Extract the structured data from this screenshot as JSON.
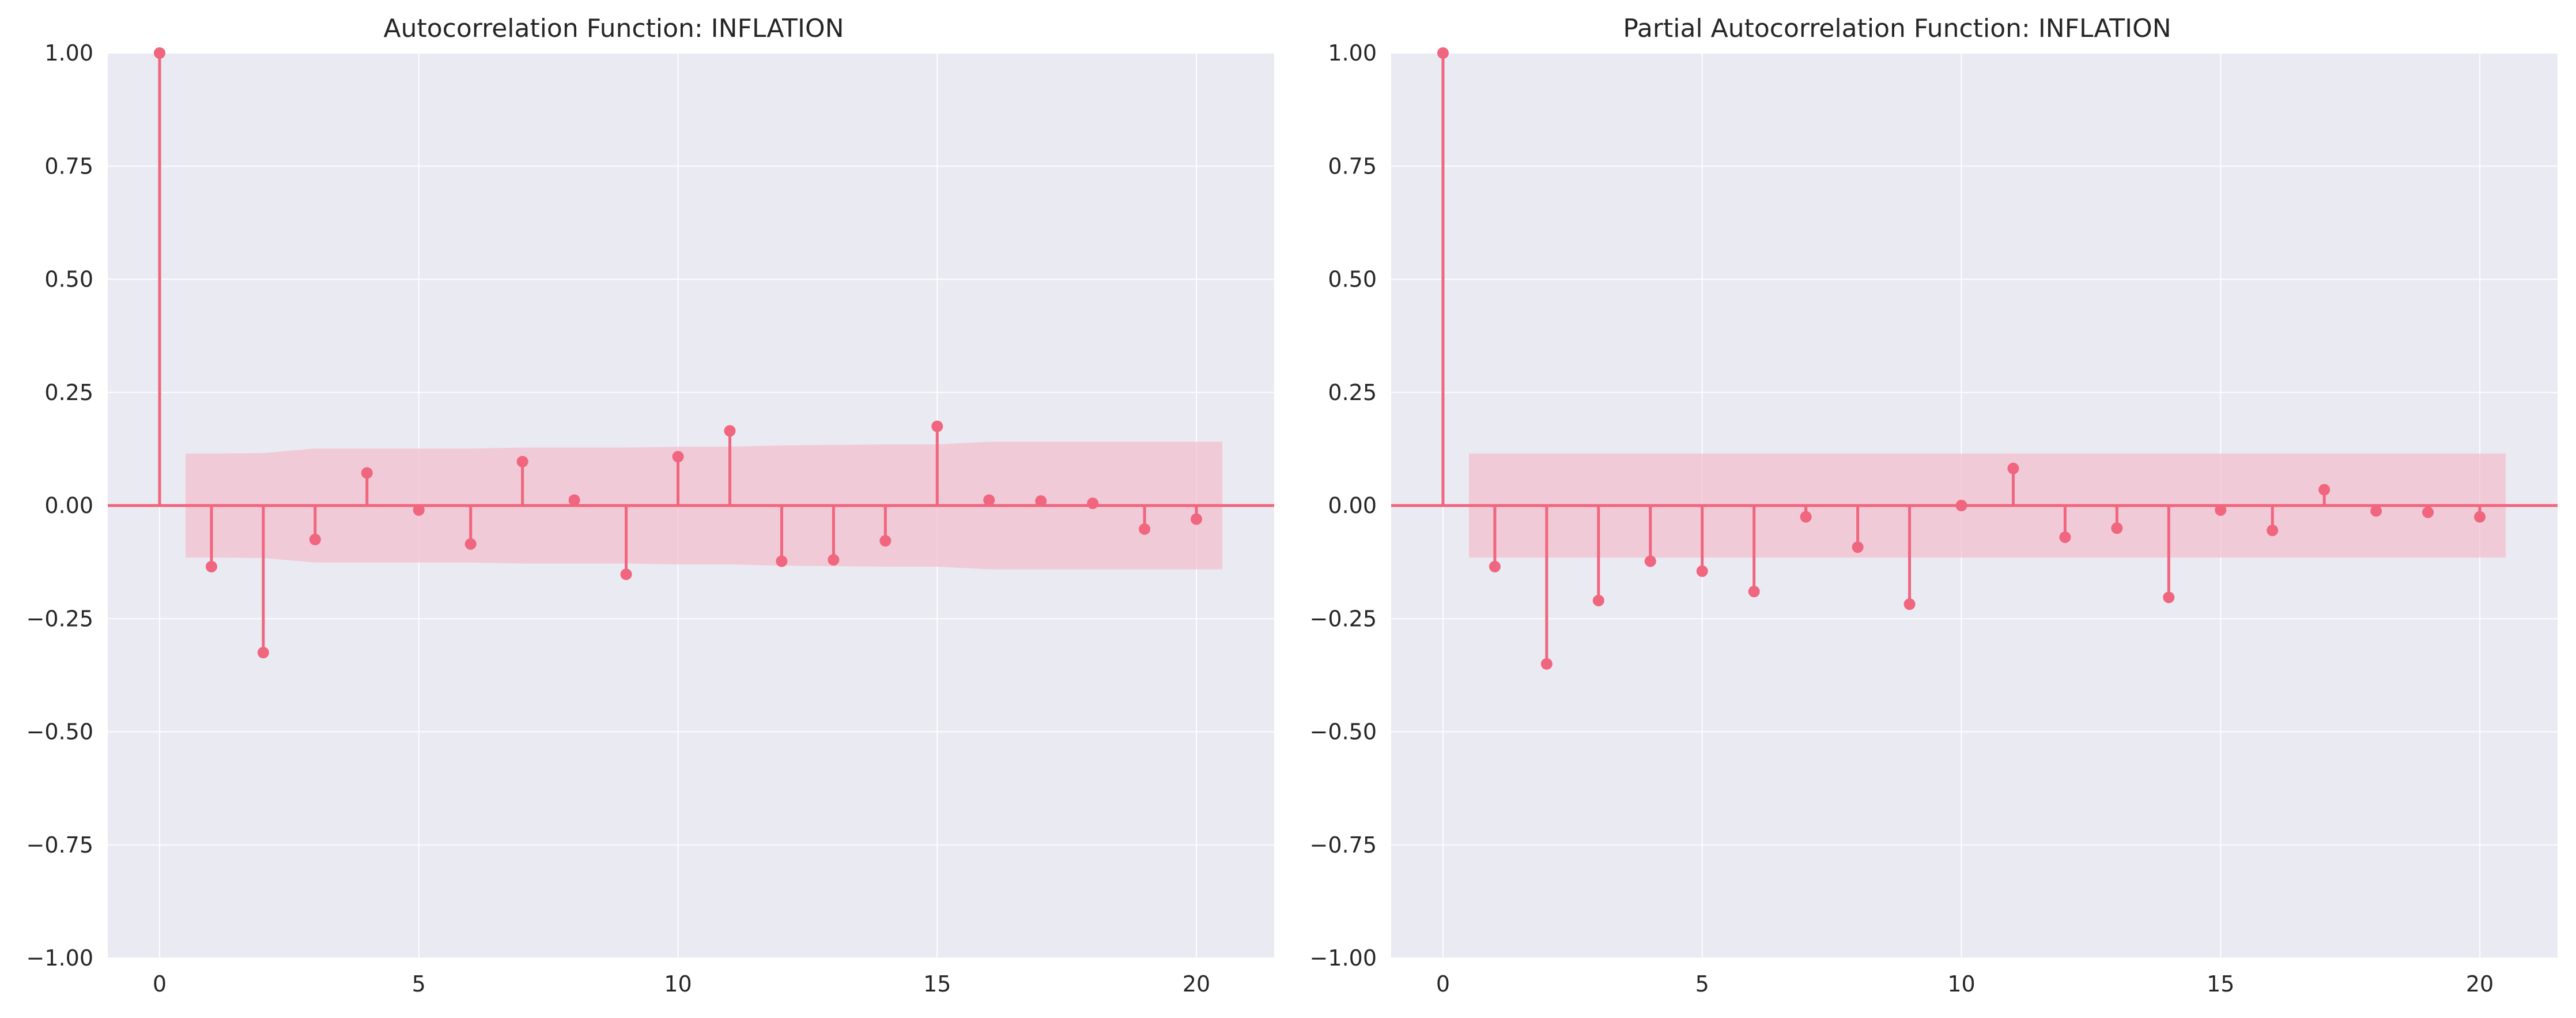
{
  "chart_data": [
    {
      "type": "stem",
      "title": "Autocorrelation Function: INFLATION",
      "xlabel": "",
      "ylabel": "",
      "xlim": [
        -1,
        21.5
      ],
      "ylim": [
        -1.0,
        1.0
      ],
      "grid": true,
      "xticks": [
        0,
        5,
        10,
        15,
        20
      ],
      "yticks": [
        1.0,
        0.75,
        0.5,
        0.25,
        0.0,
        -0.25,
        -0.5,
        -0.75,
        -1.0
      ],
      "ytick_labels": [
        "1.00",
        "0.75",
        "0.50",
        "0.25",
        "0.00",
        "−0.25",
        "−0.50",
        "−0.75",
        "−1.00"
      ],
      "xtick_labels": [
        "0",
        "5",
        "10",
        "15",
        "20"
      ],
      "lags": [
        0,
        1,
        2,
        3,
        4,
        5,
        6,
        7,
        8,
        9,
        10,
        11,
        12,
        13,
        14,
        15,
        16,
        17,
        18,
        19,
        20
      ],
      "values": [
        1.0,
        -0.135,
        -0.325,
        -0.075,
        0.072,
        -0.01,
        -0.085,
        0.097,
        0.012,
        -0.152,
        0.108,
        0.165,
        -0.123,
        -0.12,
        -0.078,
        0.175,
        0.012,
        0.01,
        0.005,
        -0.052,
        -0.03
      ],
      "confidence_band": {
        "lags": [
          0.5,
          1,
          2,
          3,
          4,
          5,
          6,
          7,
          8,
          9,
          10,
          11,
          12,
          13,
          14,
          15,
          16,
          17,
          18,
          19,
          20,
          20.5
        ],
        "upper": [
          0.115,
          0.115,
          0.116,
          0.126,
          0.126,
          0.126,
          0.126,
          0.128,
          0.128,
          0.128,
          0.13,
          0.13,
          0.133,
          0.134,
          0.135,
          0.135,
          0.141,
          0.141,
          0.141,
          0.141,
          0.141,
          0.141
        ]
      },
      "colors": {
        "stem": "#f0667f",
        "band": "#f5b8c8",
        "background": "#eaeaf2",
        "grid": "#ffffff"
      }
    },
    {
      "type": "stem",
      "title": "Partial Autocorrelation Function: INFLATION",
      "xlabel": "",
      "ylabel": "",
      "xlim": [
        -1,
        21.5
      ],
      "ylim": [
        -1.0,
        1.0
      ],
      "grid": true,
      "xticks": [
        0,
        5,
        10,
        15,
        20
      ],
      "yticks": [
        1.0,
        0.75,
        0.5,
        0.25,
        0.0,
        -0.25,
        -0.5,
        -0.75,
        -1.0
      ],
      "ytick_labels": [
        "1.00",
        "0.75",
        "0.50",
        "0.25",
        "0.00",
        "−0.25",
        "−0.50",
        "−0.75",
        "−1.00"
      ],
      "xtick_labels": [
        "0",
        "5",
        "10",
        "15",
        "20"
      ],
      "lags": [
        0,
        1,
        2,
        3,
        4,
        5,
        6,
        7,
        8,
        9,
        10,
        11,
        12,
        13,
        14,
        15,
        16,
        17,
        18,
        19,
        20
      ],
      "values": [
        1.0,
        -0.135,
        -0.35,
        -0.21,
        -0.123,
        -0.145,
        -0.19,
        -0.025,
        -0.092,
        -0.218,
        0.0,
        0.082,
        -0.07,
        -0.05,
        -0.203,
        -0.01,
        -0.055,
        0.035,
        -0.012,
        -0.015,
        -0.025
      ],
      "confidence_band": {
        "lags": [
          0.5,
          20.5
        ],
        "upper": [
          0.115,
          0.115
        ]
      },
      "colors": {
        "stem": "#f0667f",
        "band": "#f5b8c8",
        "background": "#eaeaf2",
        "grid": "#ffffff"
      }
    }
  ]
}
